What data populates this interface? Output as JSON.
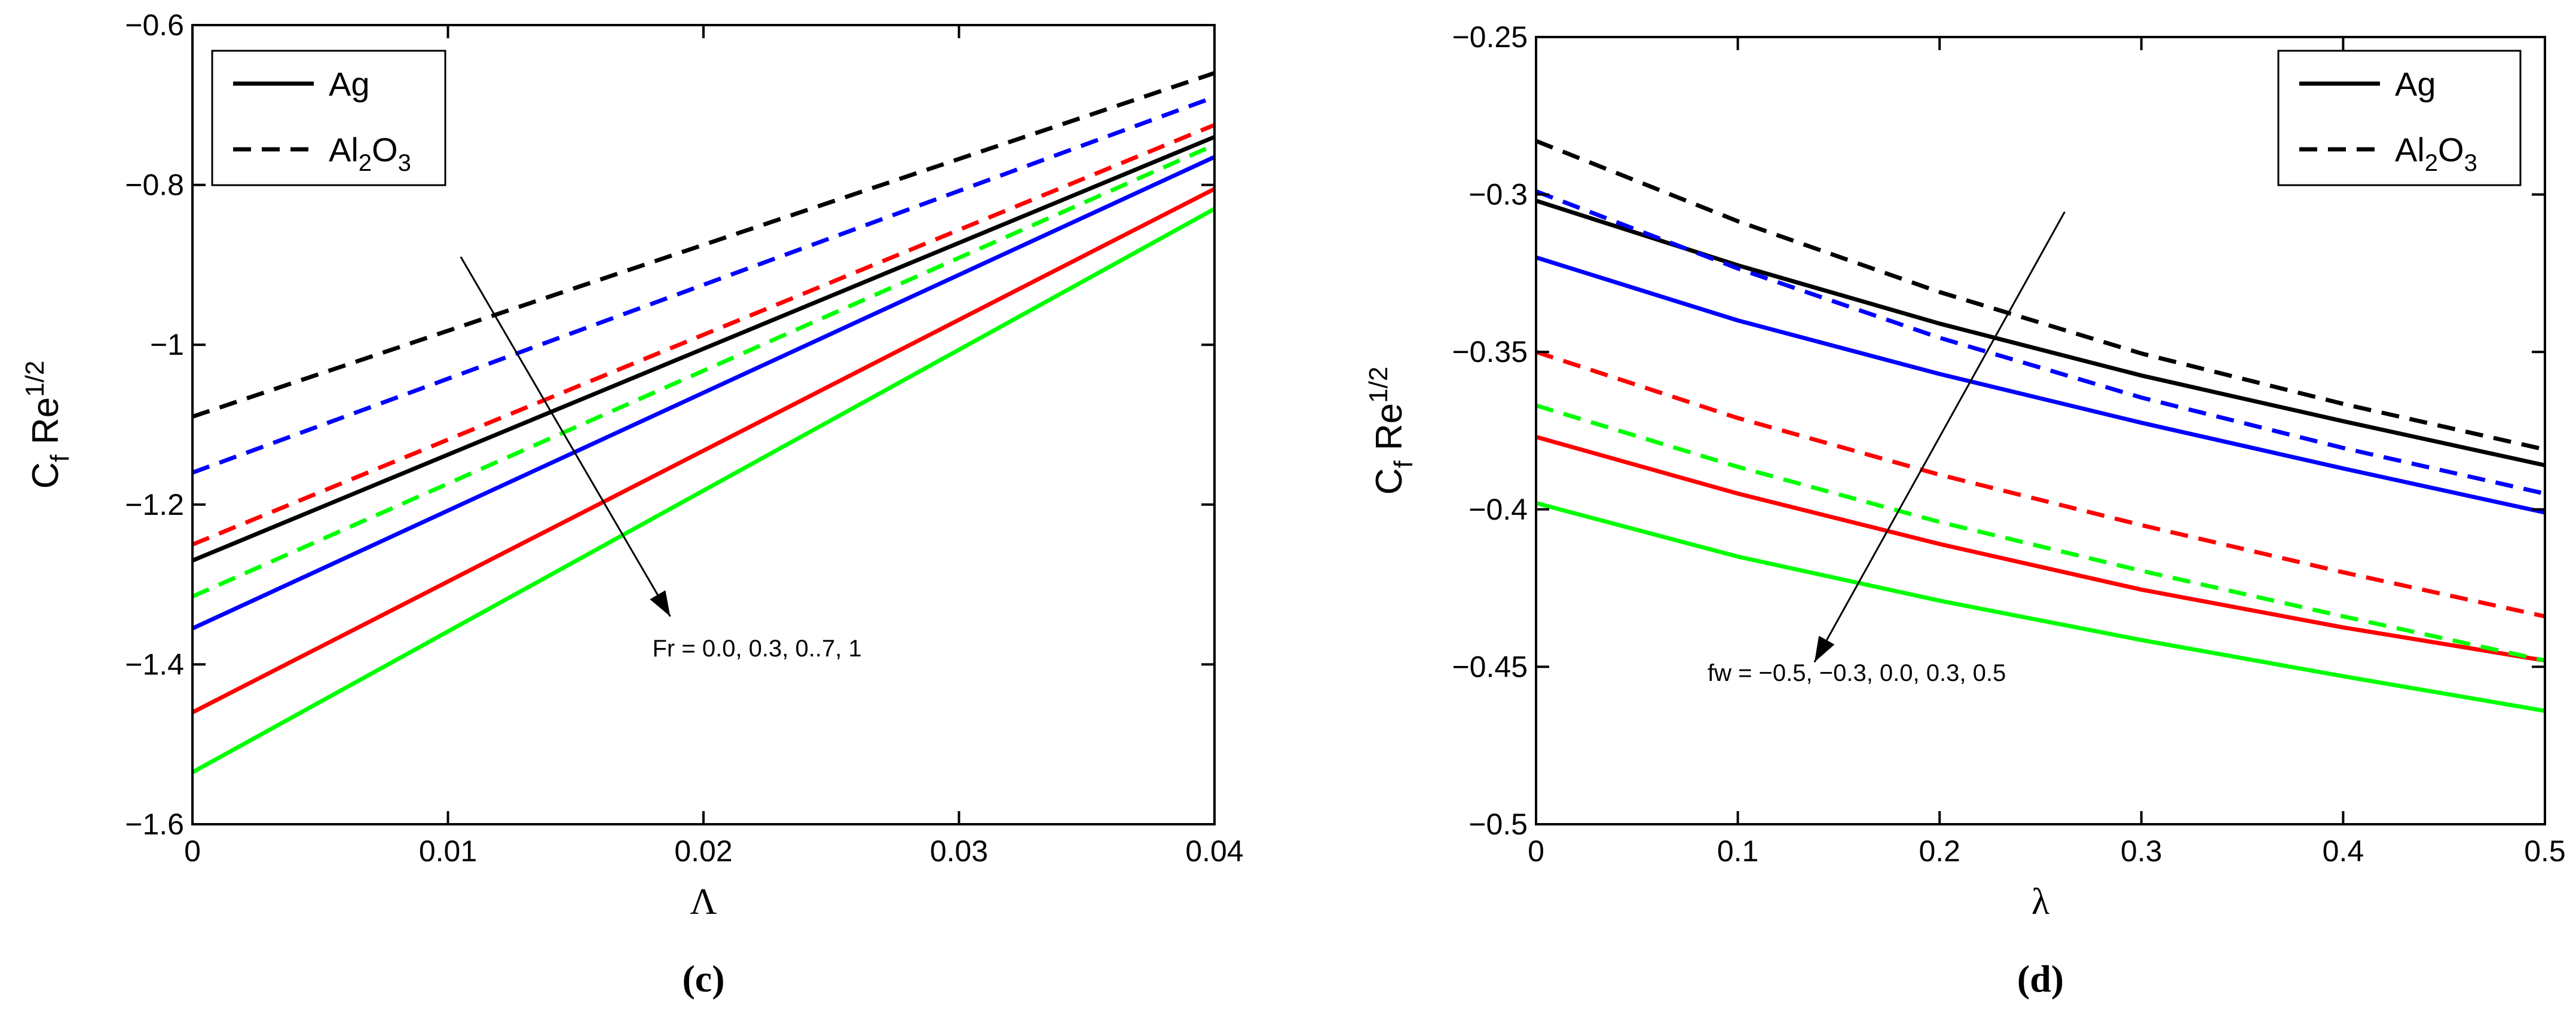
{
  "chart_data": [
    {
      "type": "line",
      "panel_label": "(c)",
      "xlabel": "Λ",
      "ylabel": "C",
      "ylabel_sub": "f",
      "ylabel_tail": " Re",
      "ylabel_sup": "1/2",
      "xlim": [
        0,
        0.04
      ],
      "ylim": [
        -1.6,
        -0.6
      ],
      "xticks": [
        0,
        0.01,
        0.02,
        0.03,
        0.04
      ],
      "xtick_labels": [
        "0",
        "0.01",
        "0.02",
        "0.03",
        "0.04"
      ],
      "yticks": [
        -1.6,
        -1.4,
        -1.2,
        -1.0,
        -0.8,
        -0.6
      ],
      "ytick_labels": [
        "−1.6",
        "−1.4",
        "−1.2",
        "−1",
        "−0.8",
        "−0.6"
      ],
      "legend": {
        "position": "top-left",
        "entries": [
          {
            "style": "solid",
            "label": "Ag",
            "sub": "",
            "tail": "",
            "sub2": ""
          },
          {
            "style": "dashed",
            "label": "Al",
            "sub": "2",
            "tail": "O",
            "sub2": "3"
          }
        ]
      },
      "annotation": {
        "text": "Fr = 0.0, 0.3, 0..7, 1",
        "arrow_from": [
          0.0105,
          -0.89
        ],
        "arrow_to": [
          0.0187,
          -1.34
        ],
        "text_at": [
          0.018,
          -1.39
        ]
      },
      "series": [
        {
          "name": "Ag Fr=0.0",
          "style": "solid",
          "color": "#000000",
          "x": [
            0,
            0.04
          ],
          "y": [
            -1.27,
            -0.74
          ]
        },
        {
          "name": "Ag Fr=0.3",
          "style": "solid",
          "color": "#0000ff",
          "x": [
            0,
            0.04
          ],
          "y": [
            -1.355,
            -0.765
          ]
        },
        {
          "name": "Ag Fr=0.7",
          "style": "solid",
          "color": "#ff0000",
          "x": [
            0,
            0.04
          ],
          "y": [
            -1.46,
            -0.805
          ]
        },
        {
          "name": "Ag Fr=1",
          "style": "solid",
          "color": "#00ff00",
          "x": [
            0,
            0.04
          ],
          "y": [
            -1.535,
            -0.83
          ]
        },
        {
          "name": "Al2O3 Fr=0.0",
          "style": "dashed",
          "color": "#000000",
          "x": [
            0,
            0.04
          ],
          "y": [
            -1.09,
            -0.66
          ]
        },
        {
          "name": "Al2O3 Fr=0.3",
          "style": "dashed",
          "color": "#0000ff",
          "x": [
            0,
            0.04
          ],
          "y": [
            -1.16,
            -0.69
          ]
        },
        {
          "name": "Al2O3 Fr=0.7",
          "style": "dashed",
          "color": "#ff0000",
          "x": [
            0,
            0.04
          ],
          "y": [
            -1.25,
            -0.725
          ]
        },
        {
          "name": "Al2O3 Fr=1",
          "style": "dashed",
          "color": "#00ff00",
          "x": [
            0,
            0.04
          ],
          "y": [
            -1.315,
            -0.75
          ]
        }
      ]
    },
    {
      "type": "line",
      "panel_label": "(d)",
      "xlabel": "λ",
      "ylabel": "C",
      "ylabel_sub": "f",
      "ylabel_tail": " Re",
      "ylabel_sup": "1/2",
      "xlim": [
        0,
        0.5
      ],
      "ylim": [
        -0.5,
        -0.25
      ],
      "xticks": [
        0,
        0.1,
        0.2,
        0.3,
        0.4,
        0.5
      ],
      "xtick_labels": [
        "0",
        "0.1",
        "0.2",
        "0.3",
        "0.4",
        "0.5"
      ],
      "yticks": [
        -0.5,
        -0.45,
        -0.4,
        -0.35,
        -0.3,
        -0.25
      ],
      "ytick_labels": [
        "−0.5",
        "−0.45",
        "−0.4",
        "−0.35",
        "−0.3",
        "−0.25"
      ],
      "legend": {
        "position": "top-right",
        "entries": [
          {
            "style": "solid",
            "label": "Ag",
            "sub": "",
            "tail": "",
            "sub2": ""
          },
          {
            "style": "dashed",
            "label": "Al",
            "sub": "2",
            "tail": "O",
            "sub2": "3"
          }
        ]
      },
      "annotation": {
        "text": "fw = −0.5, −0.3, 0.0, 0.3, 0.5",
        "arrow_from": [
          0.262,
          -0.3055
        ],
        "arrow_to": [
          0.138,
          -0.4485
        ],
        "text_at": [
          0.085,
          -0.4545
        ]
      },
      "series": [
        {
          "name": "Ag fw=-0.5",
          "style": "solid",
          "color": "#000000",
          "x": [
            0,
            0.1,
            0.2,
            0.3,
            0.4,
            0.5
          ],
          "y": [
            -0.302,
            -0.3225,
            -0.341,
            -0.3575,
            -0.372,
            -0.386
          ]
        },
        {
          "name": "Ag fw=-0.3",
          "style": "solid",
          "color": "#0000ff",
          "x": [
            0,
            0.1,
            0.2,
            0.3,
            0.4,
            0.5
          ],
          "y": [
            -0.32,
            -0.34,
            -0.357,
            -0.3725,
            -0.387,
            -0.401
          ]
        },
        {
          "name": "Ag fw=0.3",
          "style": "solid",
          "color": "#ff0000",
          "x": [
            0,
            0.1,
            0.2,
            0.3,
            0.4,
            0.5
          ],
          "y": [
            -0.377,
            -0.395,
            -0.411,
            -0.4255,
            -0.4375,
            -0.448
          ]
        },
        {
          "name": "Ag fw=0.5",
          "style": "solid",
          "color": "#00ff00",
          "x": [
            0,
            0.1,
            0.2,
            0.3,
            0.4,
            0.5
          ],
          "y": [
            -0.398,
            -0.415,
            -0.429,
            -0.4415,
            -0.453,
            -0.464
          ]
        },
        {
          "name": "Al2O3 fw=-0.5",
          "style": "dashed",
          "color": "#000000",
          "x": [
            0,
            0.1,
            0.2,
            0.3,
            0.4,
            0.5
          ],
          "y": [
            -0.283,
            -0.3085,
            -0.331,
            -0.3505,
            -0.3665,
            -0.381
          ]
        },
        {
          "name": "Al2O3 fw=-0.3",
          "style": "dashed",
          "color": "#0000ff",
          "x": [
            0,
            0.1,
            0.2,
            0.3,
            0.4,
            0.5
          ],
          "y": [
            -0.299,
            -0.3235,
            -0.3455,
            -0.3645,
            -0.3805,
            -0.395
          ]
        },
        {
          "name": "Al2O3 fw=0.0",
          "style": "dashed",
          "color": "#ff0000",
          "x": [
            0,
            0.1,
            0.2,
            0.3,
            0.4,
            0.5
          ],
          "y": [
            -0.35,
            -0.371,
            -0.389,
            -0.405,
            -0.42,
            -0.434
          ]
        },
        {
          "name": "Al2O3 fw=0.3",
          "style": "dashed",
          "color": "#00ff00",
          "x": [
            0,
            0.1,
            0.2,
            0.3,
            0.4,
            0.5
          ],
          "y": [
            -0.367,
            -0.3865,
            -0.404,
            -0.4195,
            -0.434,
            -0.448
          ]
        }
      ]
    }
  ]
}
